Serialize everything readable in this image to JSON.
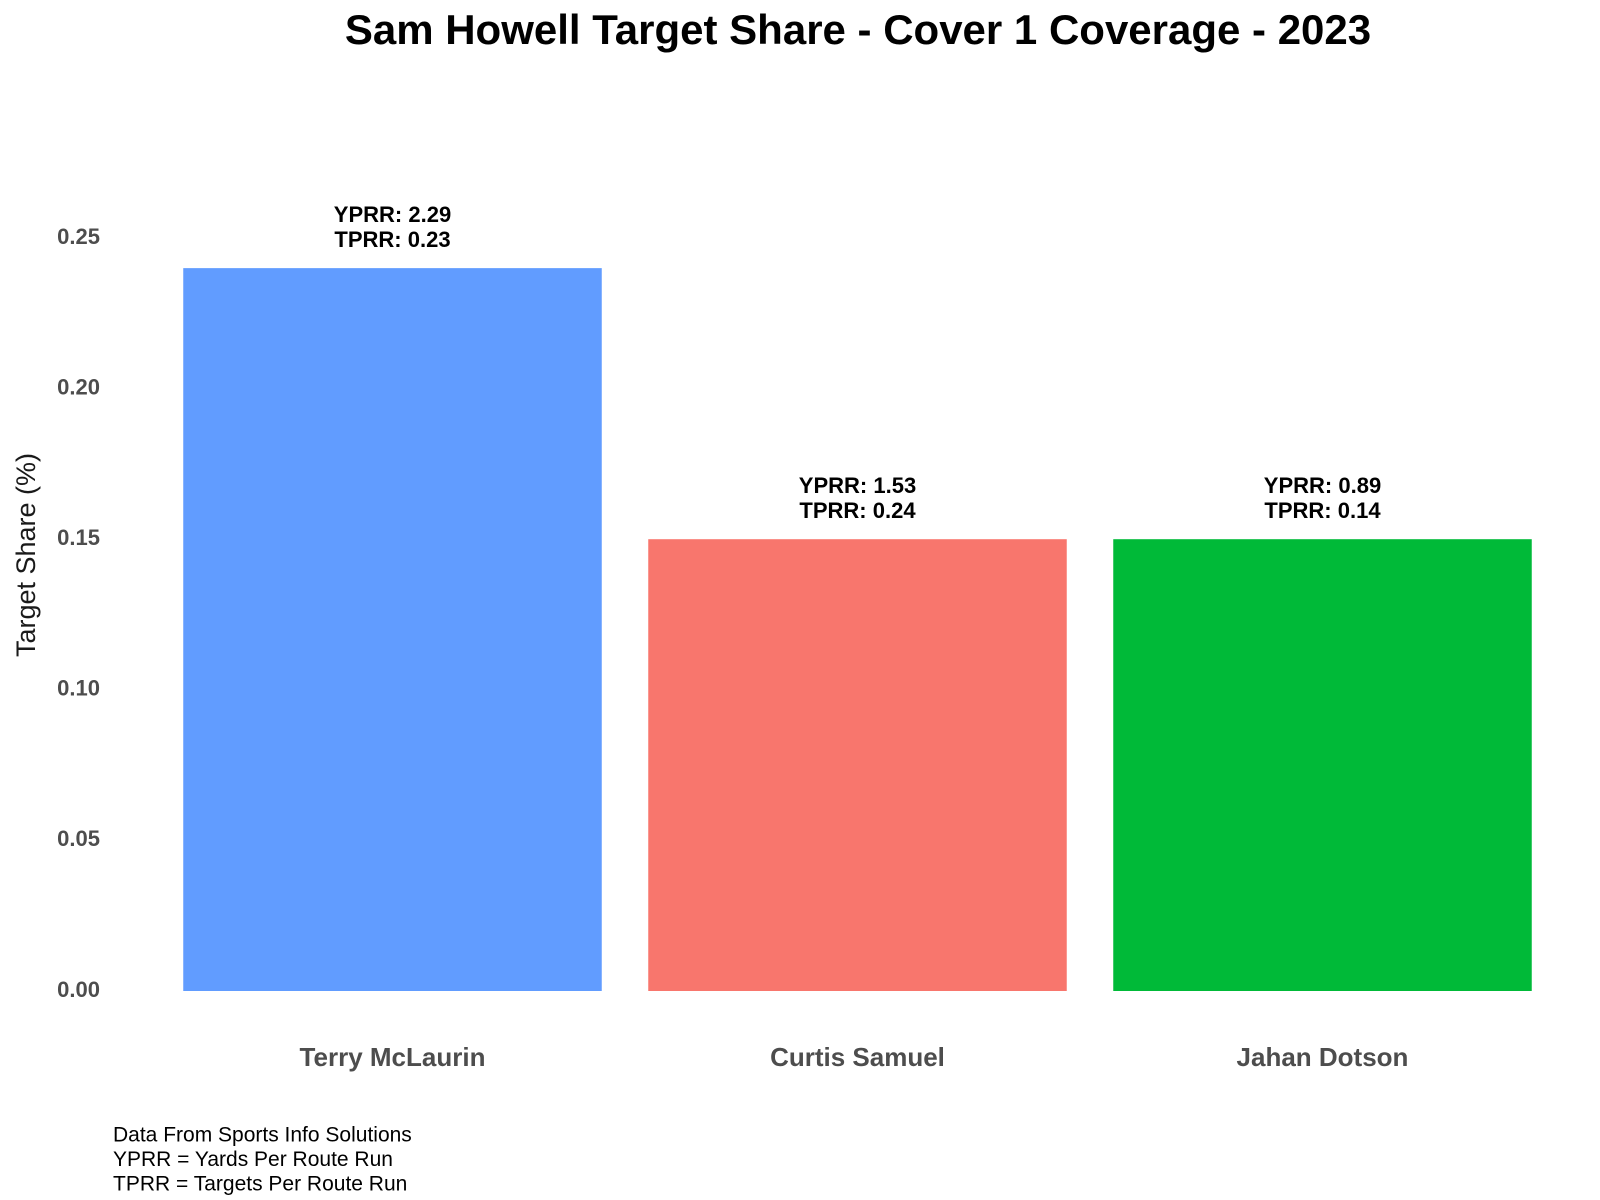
{
  "chart_data": {
    "type": "bar",
    "title": "Sam Howell Target Share - Cover 1 Coverage - 2023",
    "y_label": "Target Share (%)",
    "categories": [
      "Terry McLaurin",
      "Curtis Samuel",
      "Jahan Dotson"
    ],
    "values": [
      0.24,
      0.15,
      0.15
    ],
    "colors": [
      "#619cff",
      "#f8766d",
      "#00ba38"
    ],
    "annotations": [
      [
        "YPRR: 2.29",
        "TPRR: 0.23"
      ],
      [
        "YPRR: 1.53",
        "TPRR: 0.24"
      ],
      [
        "YPRR: 0.89",
        "TPRR: 0.14"
      ]
    ],
    "ylim": [
      0,
      0.25
    ],
    "yticks": [
      {
        "value": 0,
        "label": "0.00"
      },
      0.05,
      {
        "value": 0.1,
        "label": "0.10"
      },
      0.15,
      {
        "value": 0.2,
        "label": "0.20"
      },
      0.25
    ],
    "grid": false,
    "caption": [
      "Data From Sports Info Solutions",
      "YPRR = Yards Per Route Run",
      "TPRR = Targets Per Route Run"
    ]
  }
}
